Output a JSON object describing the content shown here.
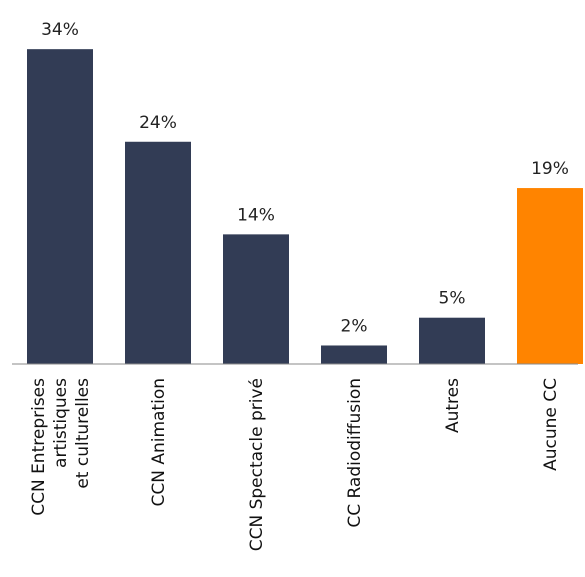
{
  "chart_data": {
    "type": "bar",
    "title": "",
    "xlabel": "",
    "ylabel": "",
    "categories": [
      [
        "CCN Entreprises",
        "artistiques",
        "et culturelles"
      ],
      [
        "CCN Animation"
      ],
      [
        "CCN Spectacle privé"
      ],
      [
        "CC Radiodiffusion"
      ],
      [
        "Autres"
      ],
      [
        "Aucune CC"
      ]
    ],
    "values": [
      34,
      24,
      14,
      2,
      5,
      19
    ],
    "value_labels": [
      "34%",
      "24%",
      "14%",
      "2%",
      "5%",
      "19%"
    ],
    "colors": [
      "#323c55",
      "#323c55",
      "#323c55",
      "#323c55",
      "#323c55",
      "#ff8400"
    ],
    "ylim": [
      0,
      34
    ],
    "grid": false,
    "legend": "none"
  }
}
